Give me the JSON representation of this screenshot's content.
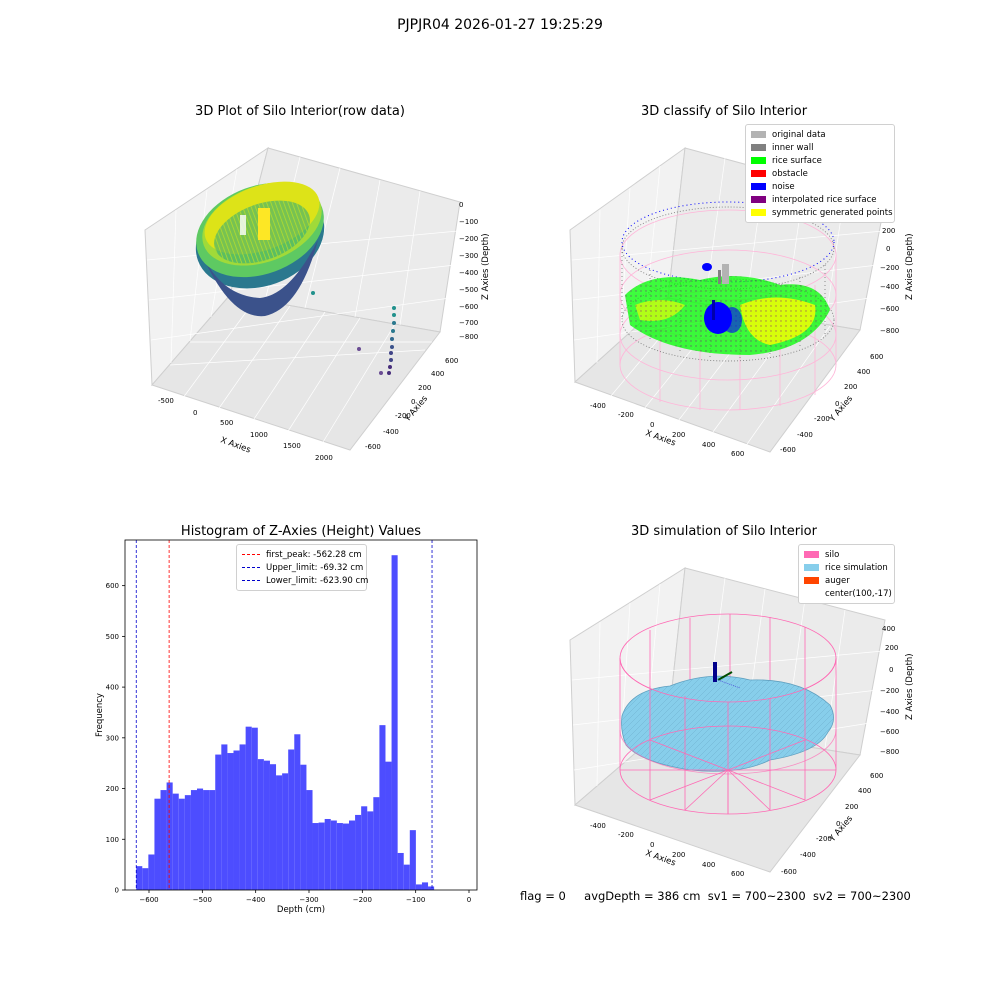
{
  "figure": {
    "suptitle": "PJPJR04 2026-01-27 19:25:29",
    "footer": {
      "flag": "flag = 0",
      "avg_depth": "avgDepth = 386 cm",
      "sv1": "sv1 = 700~2300",
      "sv2": "sv2 = 700~2300"
    }
  },
  "colors": {
    "hist_bar": "#4d4dff",
    "peak_line": "#ff0000",
    "limit_line": "#0000cc",
    "silo": "#ff69b4",
    "rice_simulation": "#87ceeb",
    "auger": "#ff4500",
    "original_data": "#b3b3b3",
    "inner_wall": "#808080",
    "rice_surface": "#00ff00",
    "obstacle": "#ff0000",
    "noise": "#0000ff",
    "interpolated_rice_surface": "#800080",
    "symmetric_generated_points": "#ffff00"
  },
  "chart_data": [
    {
      "type": "scatter",
      "title": "3D Plot of Silo Interior(row data)",
      "xlabel": "X Axies",
      "ylabel": "Y Axies",
      "zlabel": "Z Axies (Depth)",
      "x_ticks": [
        "-500",
        "0",
        "500",
        "1000",
        "1500",
        "2000"
      ],
      "y_ticks": [
        "-600",
        "-400",
        "-200",
        "0",
        "200",
        "400",
        "600"
      ],
      "z_ticks": [
        "0",
        "−100",
        "−200",
        "−300",
        "−400",
        "−500",
        "−600",
        "−700",
        "−800"
      ],
      "colormap": "viridis"
    },
    {
      "type": "scatter",
      "title": "3D classify of Silo Interior",
      "xlabel": "X Axies",
      "ylabel": "Y Axies",
      "zlabel": "Z Axies (Depth)",
      "x_ticks": [
        "-400",
        "-200",
        "0",
        "200",
        "400",
        "600"
      ],
      "y_ticks": [
        "-600",
        "-400",
        "-200",
        "0",
        "200",
        "400",
        "600"
      ],
      "z_ticks": [
        "200",
        "0",
        "−200",
        "−400",
        "−600",
        "−800"
      ],
      "legend": [
        {
          "label": "original data",
          "color": "#b3b3b3"
        },
        {
          "label": "inner wall",
          "color": "#808080"
        },
        {
          "label": "rice surface",
          "color": "#00ff00"
        },
        {
          "label": "obstacle",
          "color": "#ff0000"
        },
        {
          "label": "noise",
          "color": "#0000ff"
        },
        {
          "label": "interpolated rice surface",
          "color": "#800080"
        },
        {
          "label": "symmetric generated points",
          "color": "#ffff00"
        }
      ]
    },
    {
      "type": "bar",
      "title": "Histogram of Z-Axies (Height) Values",
      "xlabel": "Depth (cm)",
      "ylabel": "Frequency",
      "xlim": [
        -645,
        15
      ],
      "ylim": [
        0,
        690
      ],
      "x_ticks": [
        -600,
        -500,
        -400,
        -300,
        -200,
        -100,
        0
      ],
      "y_ticks": [
        0,
        100,
        200,
        300,
        400,
        500,
        600
      ],
      "bin_start": -624,
      "bin_width": 11.4,
      "values": [
        47,
        43,
        70,
        180,
        197,
        212,
        190,
        180,
        187,
        197,
        200,
        197,
        197,
        267,
        287,
        270,
        275,
        287,
        322,
        320,
        258,
        255,
        248,
        226,
        230,
        277,
        307,
        247,
        197,
        132,
        133,
        140,
        137,
        132,
        131,
        137,
        148,
        165,
        155,
        183,
        325,
        253,
        660,
        73,
        50,
        118,
        11,
        15,
        7
      ],
      "vlines": [
        {
          "x": -562.28,
          "label": "first_peak: -562.28 cm",
          "color": "#ff0000"
        },
        {
          "x": -69.32,
          "label": "Upper_limit: -69.32 cm",
          "color": "#0000cc"
        },
        {
          "x": -623.9,
          "label": "Lower_limit: -623.90 cm",
          "color": "#0000cc"
        }
      ]
    },
    {
      "type": "area",
      "title": "3D simulation of Silo Interior",
      "xlabel": "X Axies",
      "ylabel": "Y Axies",
      "zlabel": "Z Axies (Depth)",
      "x_ticks": [
        "-400",
        "-200",
        "0",
        "200",
        "400",
        "600"
      ],
      "y_ticks": [
        "-600",
        "-400",
        "-200",
        "0",
        "200",
        "400",
        "600"
      ],
      "z_ticks": [
        "400",
        "200",
        "0",
        "−200",
        "−400",
        "−600",
        "−800"
      ],
      "legend": [
        {
          "label": "silo",
          "color": "#ff69b4"
        },
        {
          "label": "rice simulation",
          "color": "#87ceeb"
        },
        {
          "label": "auger",
          "color": "#ff4500"
        },
        {
          "label": "center(100,-17)",
          "color": ""
        }
      ]
    }
  ]
}
